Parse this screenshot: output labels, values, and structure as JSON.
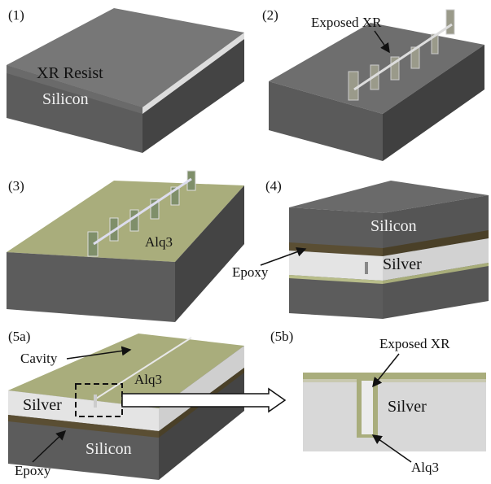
{
  "panels": [
    {
      "label": "(1)",
      "texts": [
        "XR Resist",
        "Silicon"
      ]
    },
    {
      "label": "(2)",
      "texts": [
        "Exposed XR"
      ]
    },
    {
      "label": "(3)",
      "texts": [
        "Alq3"
      ]
    },
    {
      "label": "(4)",
      "texts": [
        "Silicon",
        "Silver",
        "Epoxy"
      ]
    },
    {
      "label": "(5a)",
      "texts": [
        "Cavity",
        "Alq3",
        "Silver",
        "Silicon",
        "Epoxy"
      ]
    },
    {
      "label": "(5b)",
      "texts": [
        "Exposed XR",
        "Silver",
        "Alq3"
      ]
    }
  ]
}
